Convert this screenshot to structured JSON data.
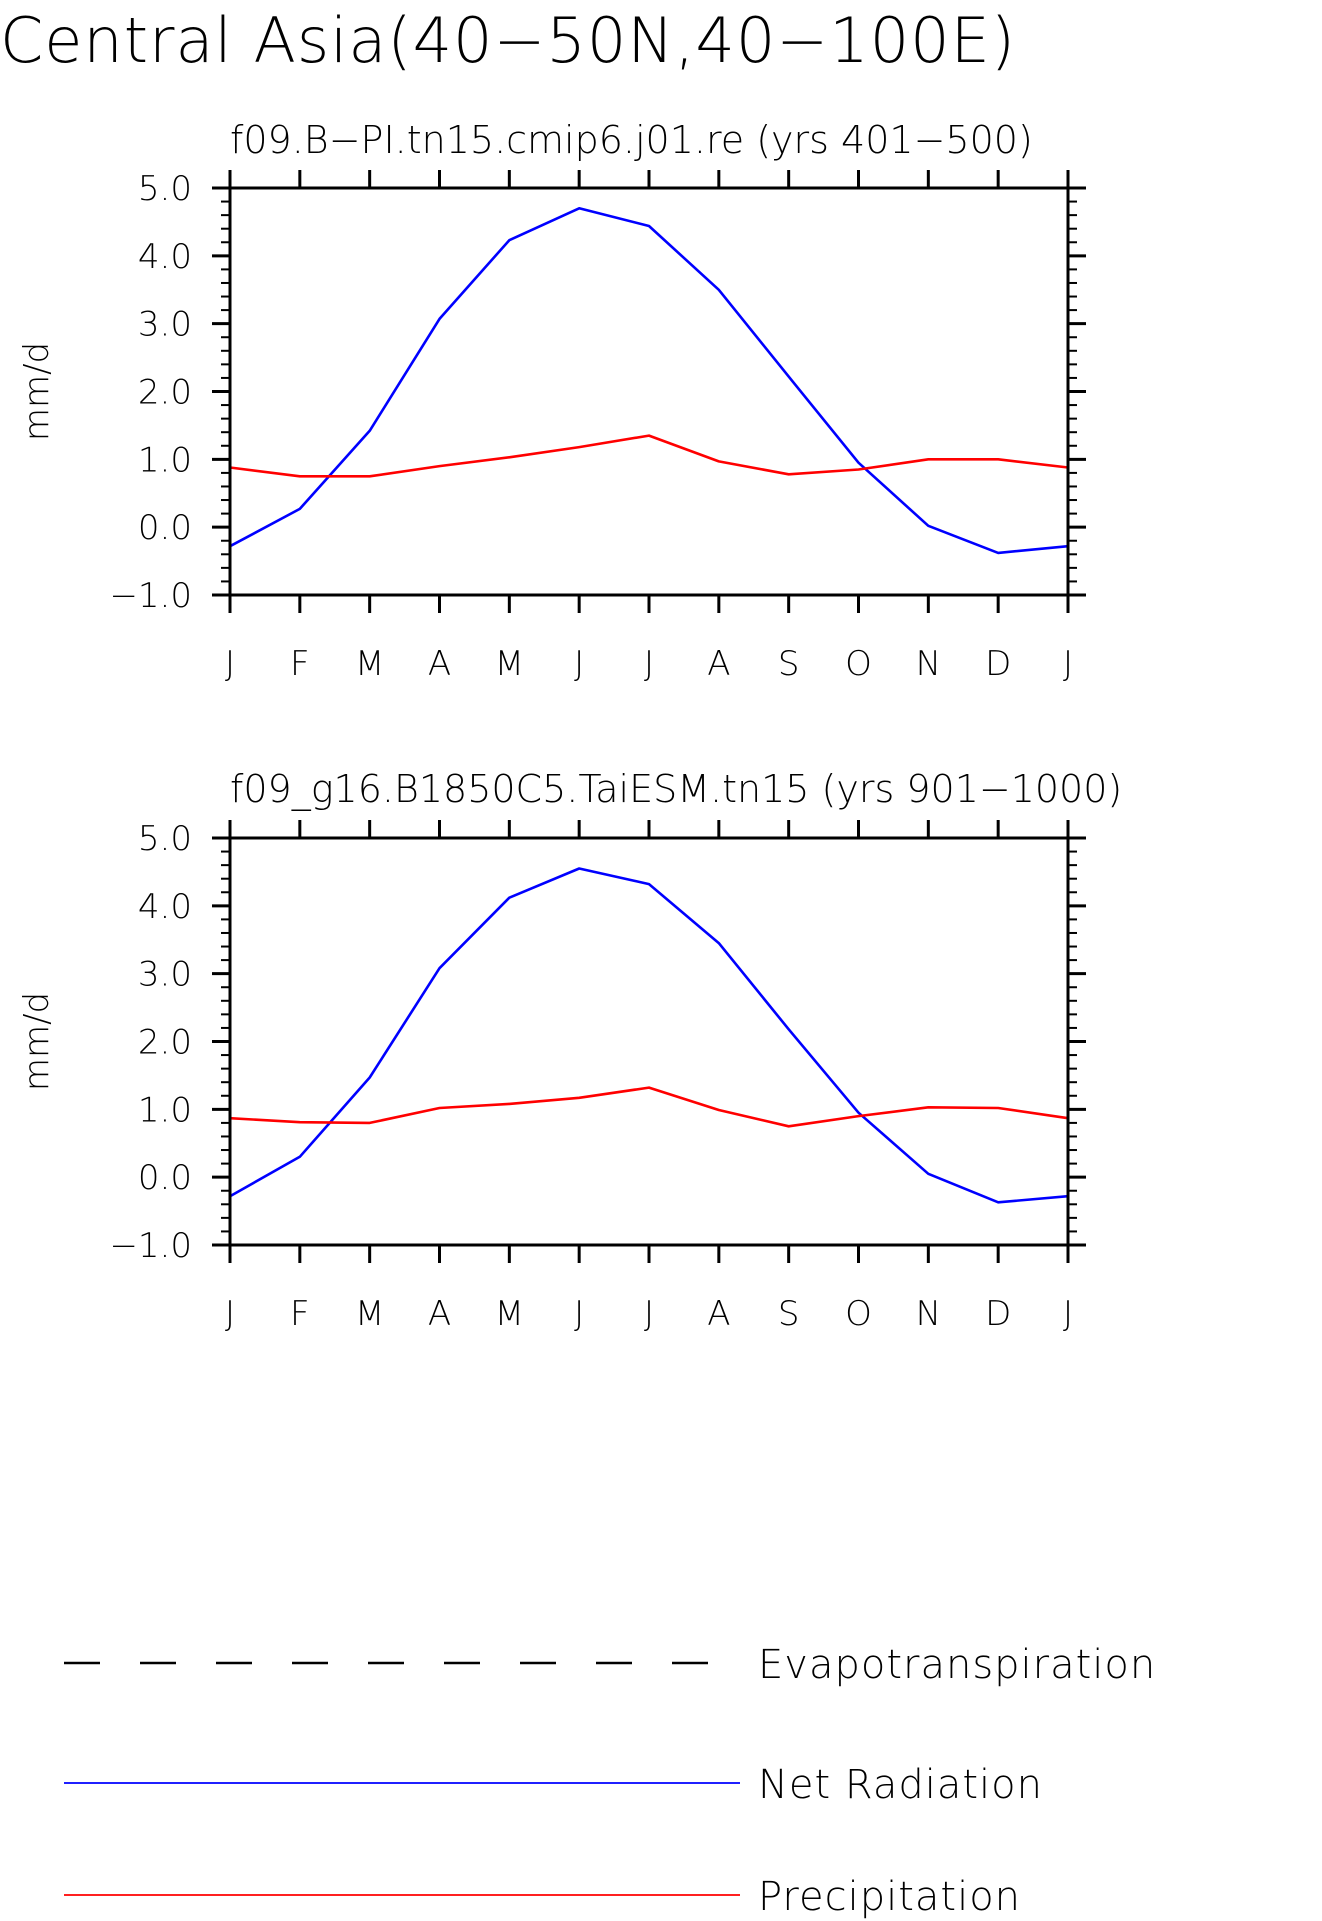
{
  "title": "Central Asia(40−50N,40−100E)",
  "colors": {
    "evapotranspiration": "#000000",
    "net_radiation": "#0000ff",
    "precipitation": "#ff0000"
  },
  "legend": {
    "entries": [
      {
        "label": "Evapotranspiration",
        "style": "dashed",
        "color": "#000000"
      },
      {
        "label": "Net Radiation",
        "style": "solid",
        "color": "#0000ff"
      },
      {
        "label": "Precipitation",
        "style": "solid",
        "color": "#ff0000"
      }
    ]
  },
  "chart_data": [
    {
      "type": "line",
      "title": "f09.B−PI.tn15.cmip6.j01.re (yrs 401−500)",
      "xlabel": "",
      "ylabel": "mm/d",
      "categories": [
        "J",
        "F",
        "M",
        "A",
        "M",
        "J",
        "J",
        "A",
        "S",
        "O",
        "N",
        "D",
        "J"
      ],
      "ylim": [
        -1.0,
        5.0
      ],
      "yticks": [
        5.0,
        4.0,
        3.0,
        2.0,
        1.0,
        0.0,
        -1.0
      ],
      "ytick_labels": [
        "5.0",
        "4.0",
        "3.0",
        "2.0",
        "1.0",
        "0.0",
        "−1.0"
      ],
      "series": [
        {
          "name": "Net Radiation",
          "color": "#0000ff",
          "values": [
            -0.28,
            0.27,
            1.42,
            3.07,
            4.23,
            4.7,
            4.44,
            3.5,
            2.22,
            0.95,
            0.02,
            -0.38,
            -0.28
          ]
        },
        {
          "name": "Precipitation",
          "color": "#ff0000",
          "values": [
            0.88,
            0.75,
            0.75,
            0.9,
            1.03,
            1.18,
            1.35,
            0.97,
            0.78,
            0.85,
            1.0,
            1.0,
            0.88
          ]
        }
      ]
    },
    {
      "type": "line",
      "title": "f09_g16.B1850C5.TaiESM.tn15 (yrs 901−1000)",
      "xlabel": "",
      "ylabel": "mm/d",
      "categories": [
        "J",
        "F",
        "M",
        "A",
        "M",
        "J",
        "J",
        "A",
        "S",
        "O",
        "N",
        "D",
        "J"
      ],
      "ylim": [
        -1.0,
        5.0
      ],
      "yticks": [
        5.0,
        4.0,
        3.0,
        2.0,
        1.0,
        0.0,
        -1.0
      ],
      "ytick_labels": [
        "5.0",
        "4.0",
        "3.0",
        "2.0",
        "1.0",
        "0.0",
        "−1.0"
      ],
      "series": [
        {
          "name": "Net Radiation",
          "color": "#0000ff",
          "values": [
            -0.28,
            0.3,
            1.47,
            3.08,
            4.12,
            4.55,
            4.32,
            3.45,
            2.18,
            0.95,
            0.05,
            -0.37,
            -0.28
          ]
        },
        {
          "name": "Precipitation",
          "color": "#ff0000",
          "values": [
            0.87,
            0.81,
            0.8,
            1.02,
            1.08,
            1.17,
            1.32,
            0.99,
            0.75,
            0.9,
            1.03,
            1.02,
            0.87
          ]
        }
      ]
    }
  ]
}
